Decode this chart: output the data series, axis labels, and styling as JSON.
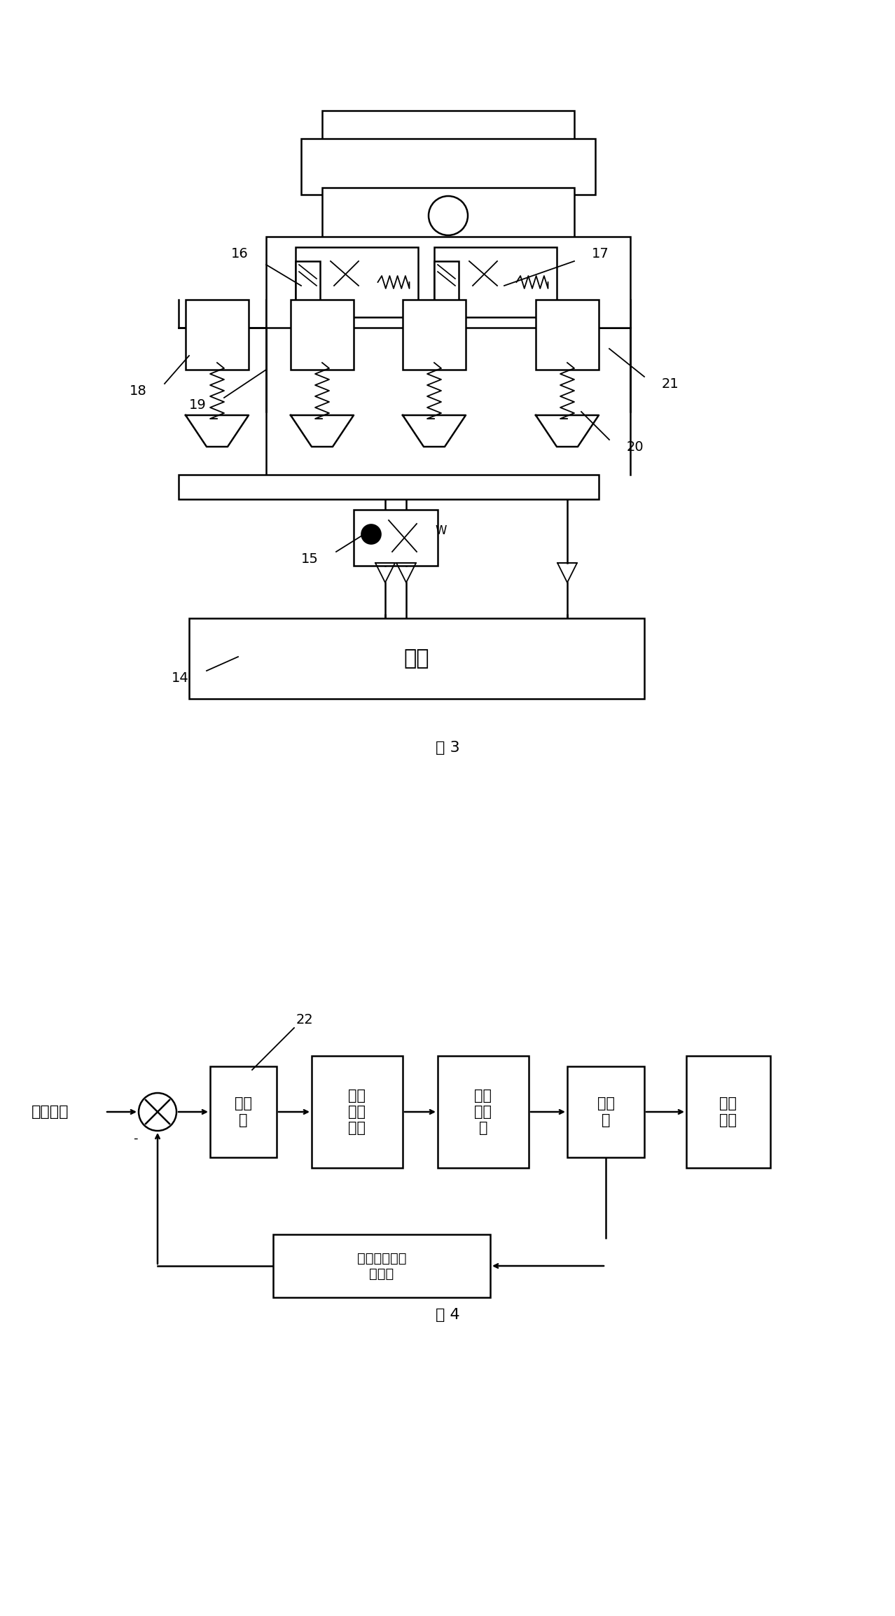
{
  "fig_width": 12.78,
  "fig_height": 23.08,
  "bg_color": "#ffffff",
  "line_color": "#000000",
  "fig3_caption": "图 3",
  "fig4_caption": "图 4",
  "pump_label": "泵站",
  "input_label": "操作指令",
  "block_controller": "控制\n器",
  "block_hydraulic": "油压\n驱动\n回路",
  "block_actuator": "接力\n器油\n缸",
  "block_distributor": "分配\n器",
  "block_water": "水路\n系统",
  "block_feedback": "凸轮轴转角检\n测装置",
  "num14": "14",
  "num15": "15",
  "num16": "16",
  "num17": "17",
  "num18": "18",
  "num19": "19",
  "num20": "20",
  "num21": "21",
  "num22": "22",
  "label_W": "W"
}
